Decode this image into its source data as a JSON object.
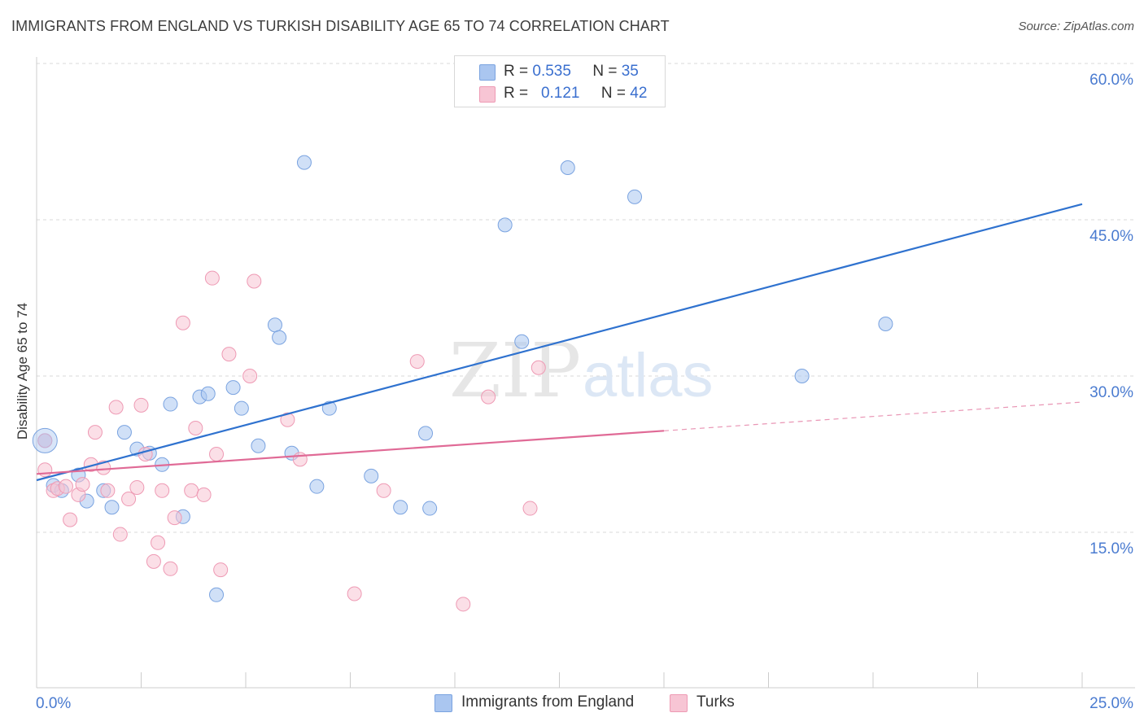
{
  "title": "IMMIGRANTS FROM ENGLAND VS TURKISH DISABILITY AGE 65 TO 74 CORRELATION CHART",
  "source": "Source: ZipAtlas.com",
  "watermark": {
    "zip": "ZIP",
    "atlas": "atlas"
  },
  "legend": {
    "rows": [
      {
        "r_label": "R =",
        "r_value": "0.535",
        "n_label": "N =",
        "n_value": "35",
        "color": "#aac6f0",
        "border": "#7aa3e0"
      },
      {
        "r_label": "R =",
        "r_value": "0.121",
        "n_label": "N =",
        "n_value": "42",
        "color": "#f7c5d4",
        "border": "#ee9ab4"
      }
    ]
  },
  "bottom_legend": [
    {
      "label": "Immigrants from England",
      "color": "#aac6f0",
      "border": "#7aa3e0"
    },
    {
      "label": "Turks",
      "color": "#f7c5d4",
      "border": "#ee9ab4"
    }
  ],
  "chart_data": {
    "type": "scatter",
    "title": "IMMIGRANTS FROM ENGLAND VS TURKISH DISABILITY AGE 65 TO 74 CORRELATION CHART",
    "xlabel": "",
    "ylabel": "Disability Age 65 to 74",
    "xlim": [
      0,
      25
    ],
    "ylim": [
      0,
      62
    ],
    "x_tick_labels": [
      "0.0%",
      "25.0%"
    ],
    "y_ticks": [
      15,
      30,
      45,
      60
    ],
    "y_tick_labels": [
      "15.0%",
      "30.0%",
      "45.0%",
      "60.0%"
    ],
    "grid": "horizontal dashed",
    "legend_position": "top-center",
    "series": [
      {
        "name": "Immigrants from England",
        "color": "#aac6f0",
        "edge": "#7aa3e0",
        "line_color": "#2f72cf",
        "trend": {
          "x0": 0,
          "y0": 20.0,
          "x1": 25,
          "y1": 46.5,
          "dashed_from": null
        },
        "points": [
          [
            0.2,
            23.8
          ],
          [
            0.4,
            19.5
          ],
          [
            0.6,
            19.0
          ],
          [
            1.0,
            20.5
          ],
          [
            1.2,
            18.0
          ],
          [
            1.6,
            19.0
          ],
          [
            1.8,
            17.4
          ],
          [
            2.1,
            24.6
          ],
          [
            2.4,
            23.0
          ],
          [
            2.7,
            22.6
          ],
          [
            3.0,
            21.5
          ],
          [
            3.2,
            27.3
          ],
          [
            3.5,
            16.5
          ],
          [
            3.9,
            28.0
          ],
          [
            4.1,
            28.3
          ],
          [
            4.3,
            9.0
          ],
          [
            4.7,
            28.9
          ],
          [
            4.9,
            26.9
          ],
          [
            5.3,
            23.3
          ],
          [
            5.7,
            34.9
          ],
          [
            5.8,
            33.7
          ],
          [
            6.1,
            22.6
          ],
          [
            6.4,
            50.5
          ],
          [
            6.7,
            19.4
          ],
          [
            7.0,
            26.9
          ],
          [
            8.0,
            20.4
          ],
          [
            8.7,
            17.4
          ],
          [
            9.3,
            24.5
          ],
          [
            9.4,
            17.3
          ],
          [
            11.2,
            44.5
          ],
          [
            11.6,
            33.3
          ],
          [
            12.7,
            50.0
          ],
          [
            14.3,
            47.2
          ],
          [
            18.3,
            30.0
          ],
          [
            20.3,
            35.0
          ]
        ]
      },
      {
        "name": "Turks",
        "color": "#f7c5d4",
        "edge": "#ee9ab4",
        "line_color": "#e06a96",
        "trend": {
          "x0": 0,
          "y0": 20.6,
          "x1": 25,
          "y1": 27.5,
          "dashed_from": 15
        },
        "points": [
          [
            0.2,
            23.8
          ],
          [
            0.2,
            21.0
          ],
          [
            0.4,
            19.0
          ],
          [
            0.5,
            19.2
          ],
          [
            0.7,
            19.4
          ],
          [
            0.8,
            16.2
          ],
          [
            1.0,
            18.6
          ],
          [
            1.1,
            19.6
          ],
          [
            1.3,
            21.5
          ],
          [
            1.4,
            24.6
          ],
          [
            1.6,
            21.2
          ],
          [
            1.7,
            19.0
          ],
          [
            1.9,
            27.0
          ],
          [
            2.0,
            14.8
          ],
          [
            2.2,
            18.2
          ],
          [
            2.4,
            19.3
          ],
          [
            2.5,
            27.2
          ],
          [
            2.6,
            22.5
          ],
          [
            2.8,
            12.2
          ],
          [
            2.9,
            14.0
          ],
          [
            3.0,
            19.0
          ],
          [
            3.2,
            11.5
          ],
          [
            3.3,
            16.4
          ],
          [
            3.5,
            35.1
          ],
          [
            3.7,
            19.0
          ],
          [
            3.8,
            25.0
          ],
          [
            4.0,
            18.6
          ],
          [
            4.2,
            39.4
          ],
          [
            4.3,
            22.5
          ],
          [
            4.4,
            11.4
          ],
          [
            4.6,
            32.1
          ],
          [
            5.1,
            30.0
          ],
          [
            5.2,
            39.1
          ],
          [
            6.0,
            25.8
          ],
          [
            6.3,
            22.0
          ],
          [
            7.6,
            9.1
          ],
          [
            8.3,
            19.0
          ],
          [
            9.1,
            31.4
          ],
          [
            10.2,
            8.1
          ],
          [
            10.8,
            28.0
          ],
          [
            11.8,
            17.3
          ],
          [
            12.0,
            30.8
          ]
        ]
      }
    ]
  }
}
